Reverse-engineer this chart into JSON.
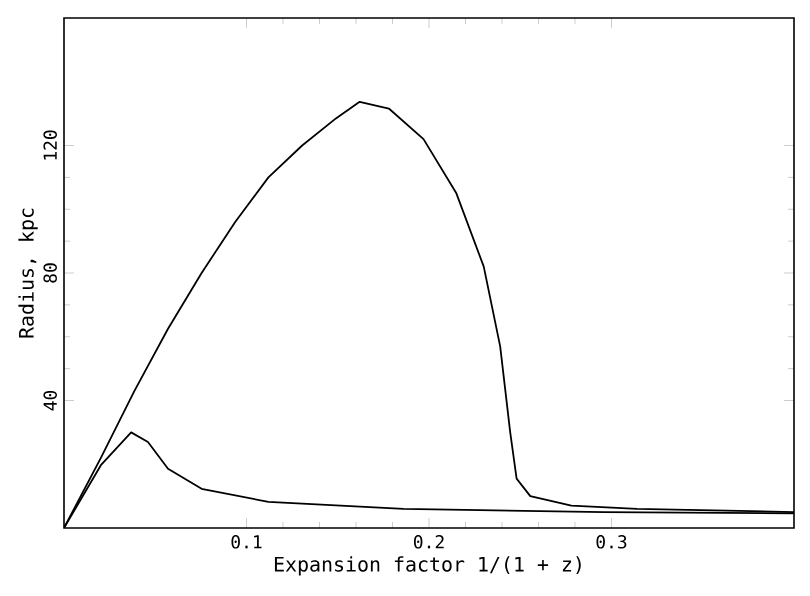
{
  "chart_data": {
    "type": "line",
    "xlabel": "Expansion factor 1/(1 + z)",
    "ylabel": "Radius, kpc",
    "xlim": [
      0,
      0.4
    ],
    "ylim": [
      0,
      160
    ],
    "xticks": [
      0.1,
      0.2,
      0.3
    ],
    "yticks": [
      40,
      80,
      120
    ],
    "series": [
      {
        "color": "#000000",
        "x": [
          0,
          0.0202,
          0.0386,
          0.057,
          0.0754,
          0.0938,
          0.112,
          0.1305,
          0.149,
          0.162,
          0.178,
          0.197,
          0.215,
          0.23,
          0.239,
          0.2445,
          0.248,
          0.2555,
          0.278,
          0.314,
          0.4
        ],
        "values": [
          0,
          22,
          43,
          62.5,
          80,
          96,
          110,
          120,
          128.5,
          133.7,
          131.6,
          122,
          105,
          82,
          57,
          30,
          15.5,
          10,
          7,
          6,
          5
        ]
      },
      {
        "color": "#000000",
        "x": [
          0,
          0.0202,
          0.0368,
          0.046,
          0.057,
          0.0754,
          0.112,
          0.186,
          0.296,
          0.4
        ],
        "values": [
          0,
          19.7,
          30,
          27,
          18.6,
          12.3,
          8.2,
          6,
          5,
          4.6
        ]
      }
    ]
  }
}
